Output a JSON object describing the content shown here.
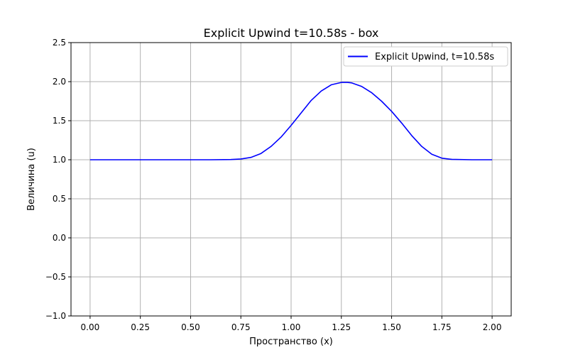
{
  "chart_data": {
    "type": "line",
    "title": "Explicit Upwind t=10.58s - box",
    "xlabel": "Пространство (x)",
    "ylabel": "Величина (u)",
    "xlim": [
      -0.095,
      2.095
    ],
    "ylim": [
      -1.0,
      2.5
    ],
    "xticks": [
      "0.00",
      "0.25",
      "0.50",
      "0.75",
      "1.00",
      "1.25",
      "1.50",
      "1.75",
      "2.00"
    ],
    "yticks": [
      "−1.0",
      "−0.5",
      "0.0",
      "0.5",
      "1.0",
      "1.5",
      "2.0",
      "2.5"
    ],
    "grid": true,
    "legend_position": "top-right",
    "series": [
      {
        "name": "Explicit Upwind, t=10.58s",
        "color": "#0000ff",
        "x": [
          0.0,
          0.25,
          0.5,
          0.6,
          0.7,
          0.75,
          0.8,
          0.85,
          0.9,
          0.95,
          1.0,
          1.05,
          1.1,
          1.15,
          1.2,
          1.25,
          1.28,
          1.3,
          1.35,
          1.4,
          1.45,
          1.5,
          1.55,
          1.6,
          1.65,
          1.7,
          1.75,
          1.8,
          1.9,
          2.0
        ],
        "y": [
          1.0,
          1.0,
          1.0,
          1.0,
          1.003,
          1.01,
          1.03,
          1.08,
          1.17,
          1.29,
          1.44,
          1.6,
          1.76,
          1.88,
          1.96,
          1.99,
          1.99,
          1.985,
          1.94,
          1.86,
          1.75,
          1.62,
          1.47,
          1.31,
          1.17,
          1.07,
          1.02,
          1.005,
          1.0,
          1.0
        ]
      }
    ]
  }
}
